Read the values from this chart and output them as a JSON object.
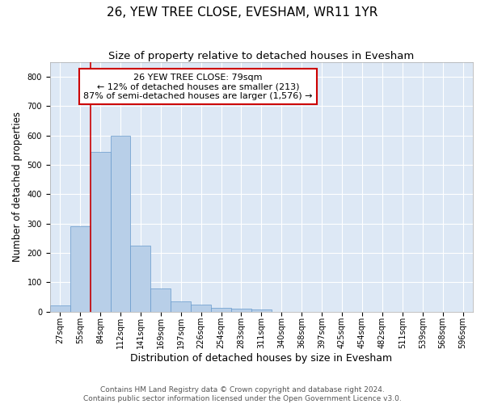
{
  "title": "26, YEW TREE CLOSE, EVESHAM, WR11 1YR",
  "subtitle": "Size of property relative to detached houses in Evesham",
  "xlabel": "Distribution of detached houses by size in Evesham",
  "ylabel": "Number of detached properties",
  "categories": [
    "27sqm",
    "55sqm",
    "84sqm",
    "112sqm",
    "141sqm",
    "169sqm",
    "197sqm",
    "226sqm",
    "254sqm",
    "283sqm",
    "311sqm",
    "340sqm",
    "368sqm",
    "397sqm",
    "425sqm",
    "454sqm",
    "482sqm",
    "511sqm",
    "539sqm",
    "568sqm",
    "596sqm"
  ],
  "values": [
    22,
    290,
    545,
    598,
    225,
    80,
    35,
    25,
    12,
    10,
    8,
    0,
    0,
    0,
    0,
    0,
    0,
    0,
    0,
    0,
    0
  ],
  "bar_color": "#b8cfe8",
  "bar_edge_color": "#6699cc",
  "vline_color": "#cc0000",
  "vline_pos": 1.5,
  "annotation_text_line1": "26 YEW TREE CLOSE: 79sqm",
  "annotation_text_line2": "← 12% of detached houses are smaller (213)",
  "annotation_text_line3": "87% of semi-detached houses are larger (1,576) →",
  "annotation_box_color": "#cc0000",
  "ylim": [
    0,
    850
  ],
  "yticks": [
    0,
    100,
    200,
    300,
    400,
    500,
    600,
    700,
    800
  ],
  "bg_color": "#dde8f5",
  "grid_color": "#ffffff",
  "footer_text": "Contains HM Land Registry data © Crown copyright and database right 2024.\nContains public sector information licensed under the Open Government Licence v3.0.",
  "title_fontsize": 11,
  "subtitle_fontsize": 9.5,
  "xlabel_fontsize": 9,
  "ylabel_fontsize": 8.5,
  "tick_fontsize": 7,
  "annotation_fontsize": 8,
  "footer_fontsize": 6.5
}
